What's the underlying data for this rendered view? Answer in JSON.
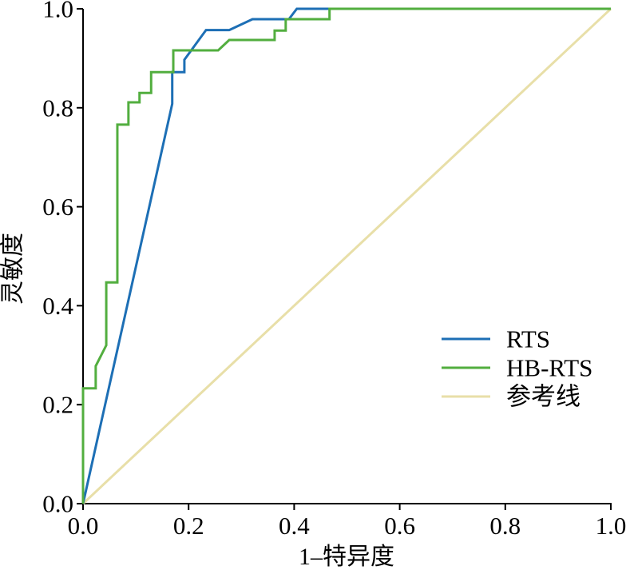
{
  "chart_data": {
    "type": "line",
    "xlabel": "1–特异度",
    "ylabel": "灵敏度",
    "xlim": [
      0,
      1
    ],
    "ylim": [
      0,
      1
    ],
    "xticks": [
      "0.0",
      "0.2",
      "0.4",
      "0.6",
      "0.8",
      "1.0"
    ],
    "yticks": [
      "0.0",
      "0.2",
      "0.4",
      "0.6",
      "0.8",
      "1.0"
    ],
    "grid": false,
    "legend_position": "lower-right",
    "axis_color": "#000000",
    "series": [
      {
        "name": "RTS",
        "color": "#1d6fb5",
        "x": [
          0,
          0.169,
          0.169,
          0.192,
          0.192,
          0.233,
          0.277,
          0.321,
          0.39,
          0.405,
          1.0
        ],
        "y": [
          0,
          0.808,
          0.872,
          0.872,
          0.897,
          0.957,
          0.957,
          0.979,
          0.979,
          1.0,
          1.0
        ]
      },
      {
        "name": "HB-RTS",
        "color": "#52ae3f",
        "x": [
          0,
          0,
          0.024,
          0.024,
          0.044,
          0.044,
          0.065,
          0.065,
          0.086,
          0.086,
          0.107,
          0.107,
          0.129,
          0.129,
          0.171,
          0.171,
          0.256,
          0.277,
          0.363,
          0.363,
          0.384,
          0.384,
          0.467,
          0.467,
          1.0
        ],
        "y": [
          0,
          0.233,
          0.233,
          0.278,
          0.32,
          0.447,
          0.447,
          0.766,
          0.766,
          0.811,
          0.811,
          0.83,
          0.83,
          0.872,
          0.872,
          0.916,
          0.916,
          0.937,
          0.937,
          0.956,
          0.956,
          0.979,
          0.979,
          1.0,
          1.0
        ]
      },
      {
        "name": "参考线",
        "color": "#e8dfa8",
        "x": [
          0,
          1
        ],
        "y": [
          0,
          1
        ]
      }
    ]
  }
}
